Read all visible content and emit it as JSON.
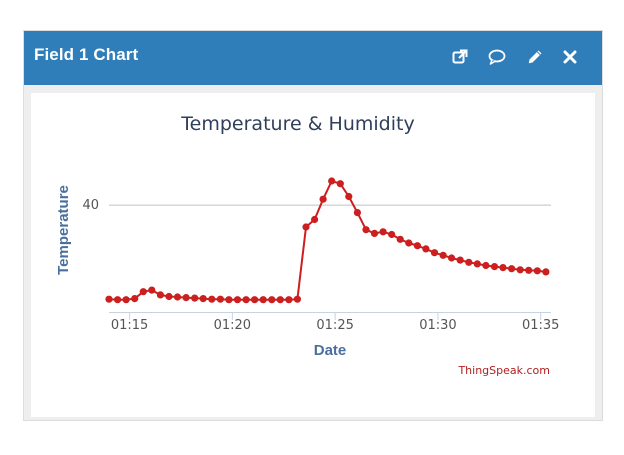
{
  "widget": {
    "title": "Field 1 Chart",
    "actions": [
      {
        "icon": "external-link-icon"
      },
      {
        "icon": "comment-icon"
      },
      {
        "icon": "pencil-icon"
      },
      {
        "icon": "close-icon"
      }
    ],
    "header_color": "#2f7db9"
  },
  "credit": "ThingSpeak.com",
  "chart_data": {
    "type": "line",
    "title": "Temperature & Humidity",
    "xlabel": "Date",
    "ylabel": "Temperature",
    "x_ticks": [
      "01:15",
      "01:20",
      "01:25",
      "01:30",
      "01:35"
    ],
    "y_ticks": [
      40
    ],
    "y_gridlines": [
      40
    ],
    "xlim": [
      "01:14",
      "01:35:30"
    ],
    "ylim": [
      20,
      46
    ],
    "series_color": "#cc1f1f",
    "legend": "none",
    "series": [
      {
        "x": [
          "01:14:00",
          "01:14:25",
          "01:14:50",
          "01:15:15",
          "01:15:40",
          "01:16:05",
          "01:16:30",
          "01:16:55",
          "01:17:20",
          "01:17:45",
          "01:18:10",
          "01:18:35",
          "01:19:00",
          "01:19:25",
          "01:19:50",
          "01:20:15",
          "01:20:40",
          "01:21:05",
          "01:21:30",
          "01:21:55",
          "01:22:20",
          "01:22:45",
          "01:23:10",
          "01:23:35",
          "01:24:00",
          "01:24:25",
          "01:24:50",
          "01:25:15",
          "01:25:40",
          "01:26:05",
          "01:26:30",
          "01:26:55",
          "01:27:20",
          "01:27:45",
          "01:28:10",
          "01:28:35",
          "01:29:00",
          "01:29:25",
          "01:29:50",
          "01:30:15",
          "01:30:40",
          "01:31:05",
          "01:31:30",
          "01:31:55",
          "01:32:20",
          "01:32:45",
          "01:33:10",
          "01:33:35",
          "01:34:00",
          "01:34:25",
          "01:34:50",
          "01:35:15"
        ],
        "values": [
          22.4,
          22.3,
          22.3,
          22.5,
          23.8,
          24.1,
          23.2,
          22.9,
          22.8,
          22.7,
          22.6,
          22.5,
          22.4,
          22.4,
          22.3,
          22.3,
          22.3,
          22.3,
          22.3,
          22.3,
          22.3,
          22.3,
          22.4,
          35.9,
          37.3,
          41.1,
          44.5,
          44.0,
          41.6,
          38.6,
          35.4,
          34.7,
          35.0,
          34.5,
          33.6,
          32.9,
          32.4,
          31.8,
          31.1,
          30.6,
          30.1,
          29.7,
          29.3,
          29.0,
          28.7,
          28.5,
          28.3,
          28.1,
          27.9,
          27.8,
          27.7,
          27.5
        ]
      }
    ]
  }
}
